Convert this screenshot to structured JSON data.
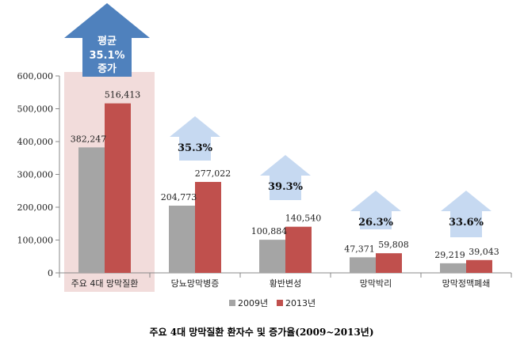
{
  "chart_data": {
    "type": "bar",
    "title": "주요 4대 망막질환 환자수 및 증가율(2009~2013년)",
    "categories": [
      "주요 4대 망막질환",
      "당뇨망막병증",
      "황반변성",
      "망막박리",
      "망막정맥폐쇄"
    ],
    "series": [
      {
        "name": "2009년",
        "values": [
          382247,
          204773,
          100884,
          47371,
          29219
        ],
        "labels": [
          "382,247",
          "204,773",
          "100,884",
          "47,371",
          "29,219"
        ]
      },
      {
        "name": "2013년",
        "values": [
          516413,
          277022,
          140540,
          59808,
          39043
        ],
        "labels": [
          "516,413",
          "277,022",
          "140,540",
          "59,808",
          "39,043"
        ]
      }
    ],
    "growth": [
      "",
      "35.3%",
      "39.3%",
      "26.3%",
      "33.6%"
    ],
    "average_callout": {
      "line1": "평균",
      "line2": "35.1%",
      "line3": "증가"
    },
    "yticks": [
      0,
      100000,
      200000,
      300000,
      400000,
      500000,
      600000
    ],
    "ytick_labels": [
      "0",
      "100,000",
      "200,000",
      "300,000",
      "400,000",
      "500,000",
      "600,000"
    ],
    "ylim": [
      0,
      600000
    ],
    "legend_position": "bottom",
    "colors": {
      "s2009": "#a5a5a5",
      "s2013": "#c0504d",
      "highlight": "#f2dcdb",
      "arrow_big": "#4f81bd",
      "arrow_small": "#c6d9f1"
    }
  }
}
